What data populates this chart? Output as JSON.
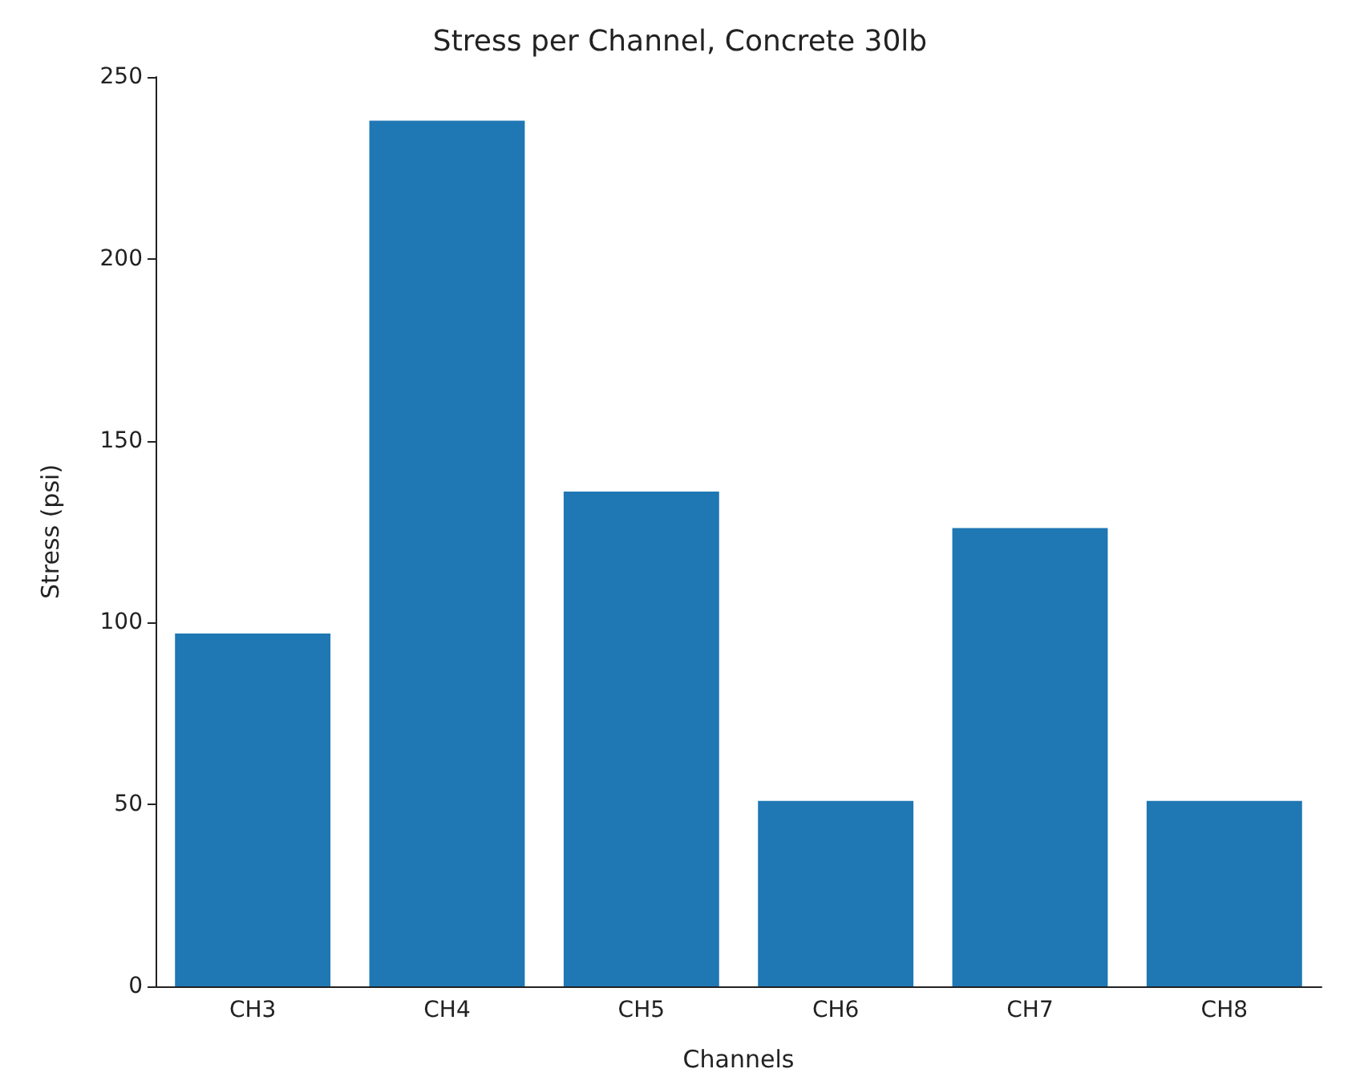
{
  "chart_data": {
    "type": "bar",
    "title": "Stress per Channel, Concrete 30lb",
    "xlabel": "Channels",
    "ylabel": "Stress (psi)",
    "categories": [
      "CH3",
      "CH4",
      "CH5",
      "CH6",
      "CH7",
      "CH8"
    ],
    "values": [
      97,
      238,
      136,
      51,
      126,
      51
    ],
    "color": "#1f77b4",
    "ylim": [
      0,
      250
    ],
    "yticks": [
      0,
      50,
      100,
      150,
      200,
      250
    ],
    "grid": false
  }
}
